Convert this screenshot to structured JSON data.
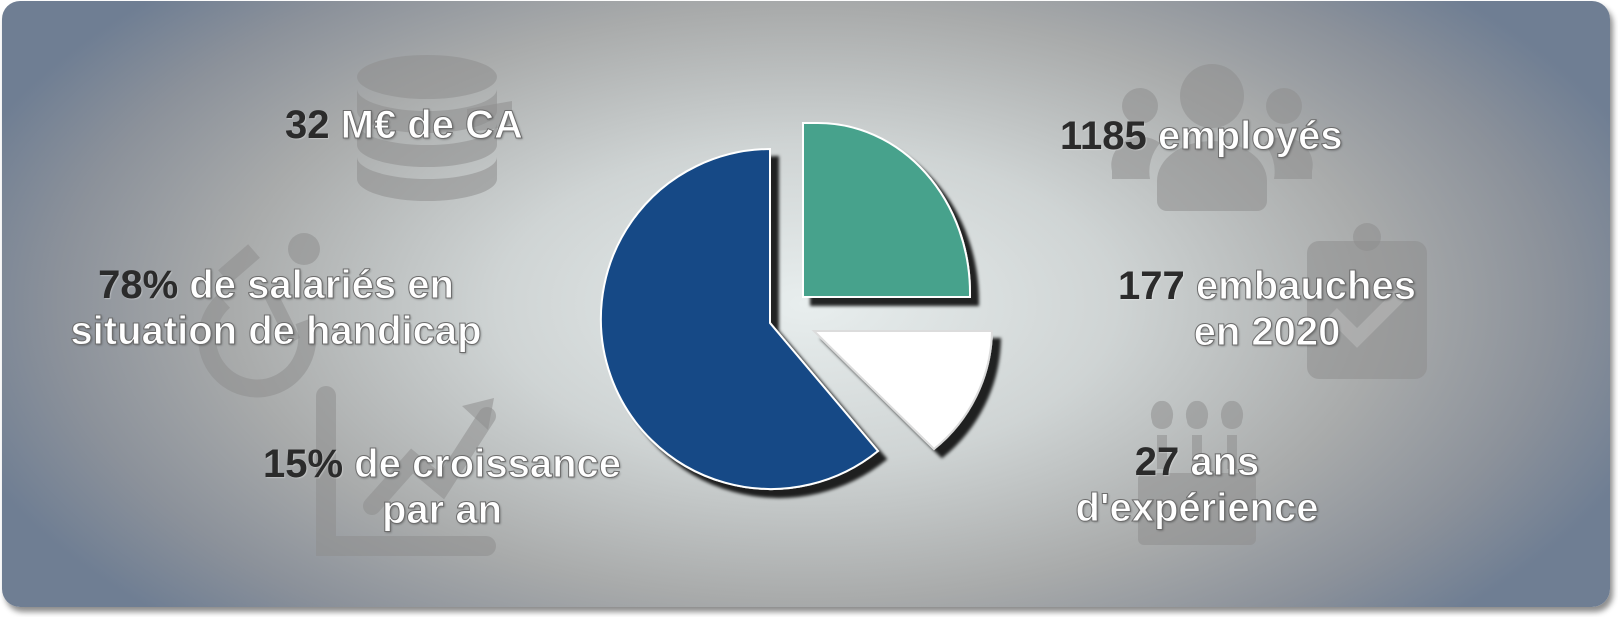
{
  "stats": {
    "revenue": {
      "number": "32",
      "text": "M€ de CA",
      "icon": "coins-stack-icon"
    },
    "disability": {
      "number": "78%",
      "text_line1": "de salariés en",
      "text_line2": "situation de handicap",
      "icon": "accessibility-icon"
    },
    "growth": {
      "number": "15%",
      "text_line1": "de croissance",
      "text_line2": "par an",
      "icon": "growth-chart-icon"
    },
    "employees": {
      "number": "1185",
      "text": "employés",
      "icon": "users-group-icon"
    },
    "hires": {
      "number": "177",
      "text_line1": "embauches",
      "text_line2": "en 2020",
      "icon": "clipboard-check-icon"
    },
    "experience": {
      "number": "27",
      "text_line1": "ans",
      "text_line2": "d'expérience",
      "icon": "birthday-cake-icon"
    }
  },
  "colors": {
    "pie_blue": "#124a86",
    "pie_green": "#47a28c",
    "pie_white": "#ffffff",
    "number_dark": "#2b2b2b",
    "label_white": "#ffffff"
  }
}
